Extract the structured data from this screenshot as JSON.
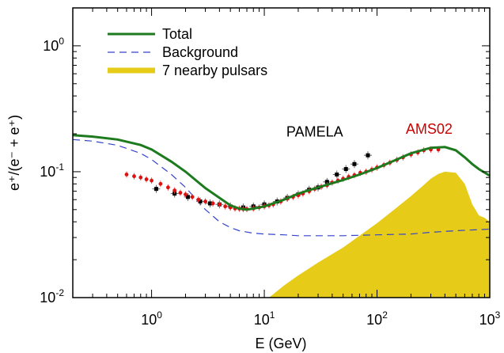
{
  "chart_data": {
    "type": "line",
    "xlabel": "E (GeV)",
    "ylabel": "e⁺/(e⁻ + e⁺)",
    "x_scale": "log",
    "y_scale": "log",
    "xlim": [
      0.2,
      1000
    ],
    "ylim": [
      0.01,
      2
    ],
    "grid": false,
    "legend": "top-left",
    "x_ticks": [
      {
        "value": 1,
        "base": "10",
        "exp": "0"
      },
      {
        "value": 10,
        "base": "10",
        "exp": "1"
      },
      {
        "value": 100,
        "base": "10",
        "exp": "2"
      },
      {
        "value": 1000,
        "base": "10",
        "exp": "3"
      }
    ],
    "y_ticks": [
      {
        "value": 0.01,
        "base": "10",
        "exp": "-2"
      },
      {
        "value": 0.1,
        "base": "10",
        "exp": "-1"
      },
      {
        "value": 1,
        "base": "10",
        "exp": "0"
      }
    ],
    "annotations": [
      {
        "text": "PAMELA",
        "x": 28,
        "y": 0.19,
        "color": "#000000"
      },
      {
        "text": "AMS02",
        "x": 290,
        "y": 0.2,
        "color": "#cc0000"
      }
    ],
    "series": [
      {
        "name": "Total",
        "style": "solid-line",
        "color": "#1e7a1e",
        "x": [
          0.2,
          0.3,
          0.5,
          0.8,
          1.0,
          1.5,
          2.0,
          3.0,
          4.0,
          5.0,
          6.0,
          7.0,
          8.0,
          10,
          15,
          20,
          30,
          50,
          70,
          100,
          150,
          200,
          300,
          400,
          500,
          600,
          700,
          800,
          1000
        ],
        "y": [
          0.195,
          0.19,
          0.18,
          0.163,
          0.15,
          0.12,
          0.1,
          0.074,
          0.062,
          0.054,
          0.051,
          0.05,
          0.051,
          0.053,
          0.06,
          0.067,
          0.075,
          0.086,
          0.095,
          0.107,
          0.125,
          0.14,
          0.155,
          0.157,
          0.148,
          0.13,
          0.115,
          0.105,
          0.093
        ]
      },
      {
        "name": "Background",
        "style": "dashed-line",
        "color": "#3344cc",
        "x": [
          0.2,
          0.3,
          0.5,
          0.8,
          1.0,
          1.5,
          2.0,
          3.0,
          4.0,
          5.0,
          6.0,
          8.0,
          10,
          15,
          20,
          30,
          50,
          100,
          200,
          300,
          500,
          1000
        ],
        "y": [
          0.18,
          0.175,
          0.162,
          0.14,
          0.125,
          0.095,
          0.075,
          0.05,
          0.04,
          0.036,
          0.034,
          0.0325,
          0.032,
          0.0315,
          0.031,
          0.031,
          0.031,
          0.0315,
          0.032,
          0.033,
          0.034,
          0.035
        ]
      },
      {
        "name": "7 nearby pulsars",
        "style": "filled-area",
        "color": "#e6cc18",
        "x": [
          11,
          15,
          20,
          30,
          50,
          70,
          100,
          150,
          200,
          250,
          300,
          350,
          400,
          500,
          600,
          700,
          800,
          900,
          1000
        ],
        "y": [
          0.01,
          0.0125,
          0.015,
          0.019,
          0.025,
          0.031,
          0.039,
          0.052,
          0.064,
          0.076,
          0.088,
          0.096,
          0.1,
          0.098,
          0.08,
          0.055,
          0.045,
          0.043,
          0.04
        ]
      },
      {
        "name": "PAMELA",
        "style": "markers-square",
        "color": "#000000",
        "x": [
          1.1,
          1.6,
          2.1,
          2.7,
          3.3,
          4.0,
          5.0,
          6.5,
          8.0,
          10,
          13,
          16,
          20,
          25,
          30,
          36,
          44,
          53,
          63,
          83
        ],
        "y": [
          0.073,
          0.067,
          0.063,
          0.058,
          0.056,
          0.055,
          0.053,
          0.052,
          0.053,
          0.055,
          0.058,
          0.062,
          0.066,
          0.072,
          0.075,
          0.083,
          0.095,
          0.105,
          0.115,
          0.135
        ]
      },
      {
        "name": "AMS02",
        "style": "markers-dot",
        "color": "#dd1111",
        "x": [
          0.6,
          0.7,
          0.8,
          0.9,
          1.0,
          1.2,
          1.4,
          1.6,
          1.8,
          2.0,
          2.3,
          2.6,
          3.0,
          3.5,
          4.0,
          4.5,
          5.0,
          5.5,
          6.0,
          6.5,
          7.0,
          8.0,
          9.0,
          10,
          11,
          12,
          14,
          16,
          18,
          20,
          22,
          25,
          28,
          32,
          36,
          40,
          45,
          50,
          56,
          63,
          71,
          80,
          90,
          100,
          115,
          130,
          150,
          170,
          200,
          230,
          260,
          300,
          350
        ],
        "y": [
          0.095,
          0.092,
          0.09,
          0.087,
          0.085,
          0.08,
          0.075,
          0.071,
          0.068,
          0.066,
          0.063,
          0.06,
          0.058,
          0.056,
          0.055,
          0.053,
          0.052,
          0.051,
          0.0508,
          0.0505,
          0.0505,
          0.051,
          0.052,
          0.053,
          0.054,
          0.055,
          0.058,
          0.061,
          0.063,
          0.065,
          0.067,
          0.07,
          0.073,
          0.076,
          0.078,
          0.082,
          0.085,
          0.088,
          0.091,
          0.094,
          0.098,
          0.1,
          0.104,
          0.108,
          0.113,
          0.118,
          0.124,
          0.13,
          0.137,
          0.142,
          0.148,
          0.15,
          0.15
        ]
      }
    ]
  }
}
